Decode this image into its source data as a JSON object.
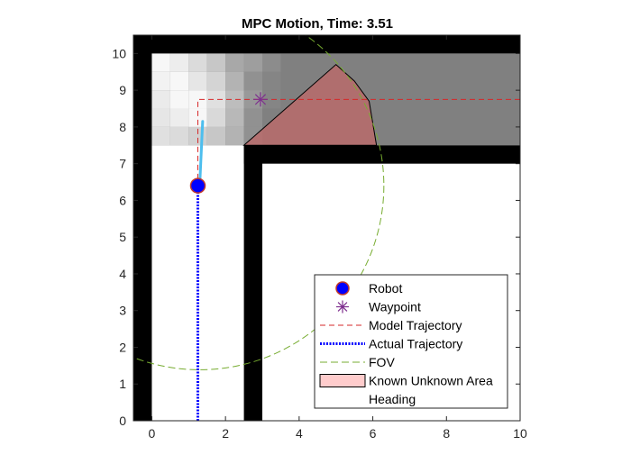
{
  "chart_data": {
    "type": "scatter",
    "title": "MPC Motion, Time: 3.51",
    "xlabel": "",
    "ylabel": "",
    "xlim": [
      -0.5,
      10
    ],
    "ylim": [
      0,
      10.5
    ],
    "x_ticks": [
      0,
      2,
      4,
      6,
      8,
      10
    ],
    "y_ticks": [
      0,
      1,
      2,
      3,
      4,
      5,
      6,
      7,
      8,
      9,
      10
    ],
    "grid": false,
    "legend_position": "bottom-right",
    "colors": {
      "wall": "#000000",
      "unknown_region": "#808080",
      "robot": "#0000ff",
      "robot_edge": "#c0392b",
      "waypoint": "#7e2f8e",
      "model_trajectory": "#d62728",
      "actual_trajectory": "#0000ff",
      "fov": "#77ac30",
      "known_unknown_area": "#b86b6b",
      "heading": "#4dbeee"
    },
    "walls": [
      {
        "x": [
          -0.5,
          0
        ],
        "y": [
          0,
          10.5
        ]
      },
      {
        "x": [
          -0.5,
          10
        ],
        "y": [
          10,
          10.5
        ]
      },
      {
        "x": [
          2.5,
          3
        ],
        "y": [
          0,
          7.5
        ]
      },
      {
        "x": [
          2.5,
          10
        ],
        "y": [
          7,
          7.5
        ]
      }
    ],
    "unknown_region": {
      "x": [
        0,
        10
      ],
      "y": [
        7.5,
        10
      ]
    },
    "occupancy_cells": {
      "x_start": 0,
      "y_start": 7.5,
      "cell_size": 0.5,
      "rows_top_to_bottom": [
        [
          0.97,
          0.93,
          0.86,
          0.78,
          0.66,
          0.62,
          0.55
        ],
        [
          0.95,
          0.97,
          0.9,
          0.83,
          0.7,
          0.57,
          0.52
        ],
        [
          0.92,
          0.97,
          0.97,
          0.88,
          0.74,
          0.6,
          0.52
        ],
        [
          0.9,
          0.93,
          0.97,
          0.85,
          0.72,
          0.57,
          0.5
        ],
        [
          0.88,
          0.86,
          0.82,
          0.78,
          0.7,
          0.57,
          0.5
        ]
      ]
    },
    "known_unknown_area": {
      "x": [
        2.5,
        5.0,
        5.5,
        5.9,
        6.1,
        2.5
      ],
      "y": [
        7.5,
        9.7,
        9.25,
        8.7,
        7.5,
        7.5
      ]
    },
    "fov": {
      "center": [
        1.3,
        6.4
      ],
      "radius": 5.0
    },
    "robot": {
      "x": 1.25,
      "y": 6.4
    },
    "waypoint": {
      "x": 2.95,
      "y": 8.75
    },
    "model_trajectory": {
      "x": [
        10,
        1.25,
        1.25
      ],
      "y": [
        8.75,
        8.75,
        6.4
      ]
    },
    "actual_trajectory": {
      "x": [
        1.25,
        1.25
      ],
      "y": [
        0,
        6.4
      ]
    },
    "heading": {
      "x": [
        1.3,
        1.38
      ],
      "y": [
        6.4,
        8.15
      ]
    },
    "legend": [
      {
        "label": "Robot",
        "symbol": "circle"
      },
      {
        "label": "Waypoint",
        "symbol": "star"
      },
      {
        "label": "Model Trajectory",
        "symbol": "dashed-line"
      },
      {
        "label": "Actual Trajectory",
        "symbol": "dotted-line"
      },
      {
        "label": "FOV",
        "symbol": "dash-line"
      },
      {
        "label": "Known Unknown Area",
        "symbol": "patch"
      },
      {
        "label": "Heading",
        "symbol": "none"
      }
    ]
  }
}
